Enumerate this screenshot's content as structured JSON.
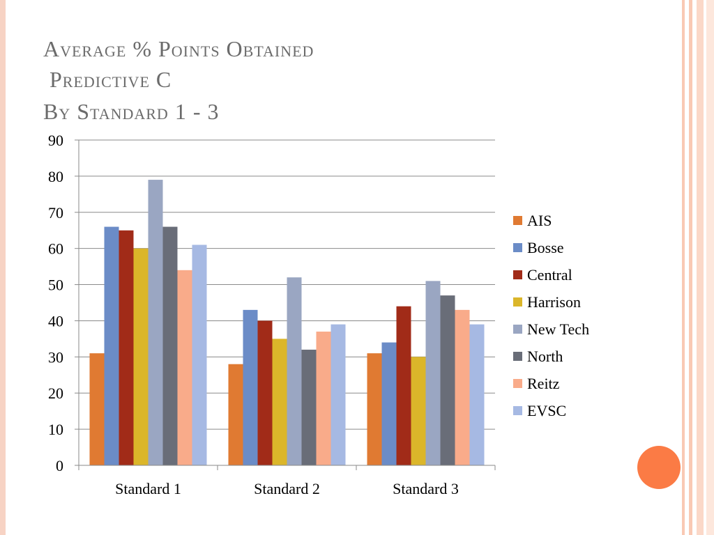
{
  "slide": {
    "title_lines": [
      "Average % Points Obtained",
      " Predictive C",
      "By Standard 1 - 3"
    ]
  },
  "chart_data": {
    "type": "bar",
    "title": "Average % Points Obtained Predictive C By Standard 1 - 3",
    "xlabel": "",
    "ylabel": "",
    "ylim": [
      0,
      90
    ],
    "y_ticks": [
      0,
      10,
      20,
      30,
      40,
      50,
      60,
      70,
      80,
      90
    ],
    "grid": true,
    "legend_position": "right",
    "categories": [
      "Standard 1",
      "Standard 2",
      "Standard 3"
    ],
    "series": [
      {
        "name": "AIS",
        "color": "#e07a32",
        "values": [
          31,
          28,
          31
        ]
      },
      {
        "name": "Bosse",
        "color": "#6b8cc7",
        "values": [
          66,
          43,
          34
        ]
      },
      {
        "name": "Central",
        "color": "#a12b18",
        "values": [
          65,
          40,
          44
        ]
      },
      {
        "name": "Harrison",
        "color": "#dbb62a",
        "values": [
          60,
          35,
          30
        ]
      },
      {
        "name": "New Tech",
        "color": "#9aa6c2",
        "values": [
          79,
          52,
          51
        ]
      },
      {
        "name": "North",
        "color": "#696d78",
        "values": [
          66,
          32,
          47
        ]
      },
      {
        "name": "Reitz",
        "color": "#f9ab8a",
        "values": [
          54,
          37,
          43
        ]
      },
      {
        "name": "EVSC",
        "color": "#a6b9e3",
        "values": [
          61,
          39,
          39
        ]
      }
    ]
  }
}
